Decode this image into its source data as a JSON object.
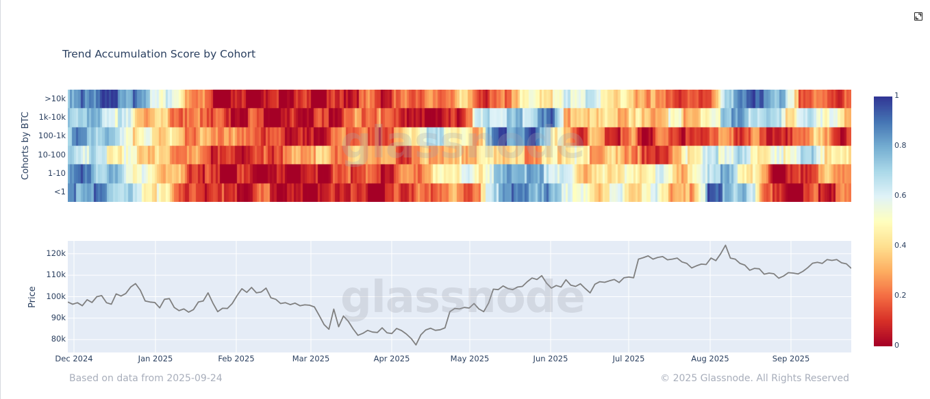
{
  "header": {
    "title": "Trend Accumulation Score by Cohort",
    "expand_icon": "expand-icon"
  },
  "footer": {
    "based_on": "Based on data from 2025-09-24",
    "copyright": "© 2025 Glassnode. All Rights Reserved"
  },
  "watermark": "glassnode",
  "colors": {
    "price_line": "#7f7f7f",
    "plot_bg": "#e5ecf6",
    "grid": "#ffffff",
    "text": "#2a3f5f",
    "footer_text": "#a8aebb",
    "colorscale": [
      "#a50026",
      "#d73027",
      "#f46d43",
      "#fdae61",
      "#fee090",
      "#ffffbf",
      "#e0f3f8",
      "#abd9e9",
      "#74add1",
      "#4575b4",
      "#313695"
    ]
  },
  "chart_data": [
    {
      "type": "heatmap",
      "title": "Trend Accumulation Score by Cohort",
      "ylabel": "Cohorts by BTC",
      "xlabel": "",
      "rows": [
        ">10k",
        "1k-10k",
        "100-1k",
        "10-100",
        "1-10",
        "<1"
      ],
      "x_range": [
        "2024-11-28",
        "2025-09-24"
      ],
      "x_ticks": [
        "Dec 2024",
        "Jan 2025",
        "Feb 2025",
        "Mar 2025",
        "Apr 2025",
        "May 2025",
        "Jun 2025",
        "Jul 2025",
        "Aug 2025",
        "Sep 2025"
      ],
      "colorbar": {
        "min": 0,
        "max": 1,
        "ticks": [
          "0",
          "0.2",
          "0.4",
          "0.6",
          "0.8",
          "1"
        ],
        "colorscale": "RdYlBu"
      },
      "segments_note": "Each row = 60 equal-width time segments from Nov 28 2024 to Sep 24 2025; values are approximate score 0-1",
      "values": {
        ">10k": [
          0.78,
          0.95,
          0.97,
          0.98,
          0.96,
          0.9,
          0.7,
          0.65,
          0.6,
          0.4,
          0.3,
          0.12,
          0.08,
          0.1,
          0.12,
          0.06,
          0.1,
          0.08,
          0.12,
          0.05,
          0.1,
          0.15,
          0.18,
          0.25,
          0.12,
          0.2,
          0.28,
          0.3,
          0.22,
          0.35,
          0.4,
          0.3,
          0.15,
          0.25,
          0.42,
          0.5,
          0.55,
          0.5,
          0.62,
          0.7,
          0.65,
          0.55,
          0.45,
          0.42,
          0.4,
          0.25,
          0.3,
          0.15,
          0.2,
          0.25,
          0.62,
          0.97,
          0.95,
          0.92,
          0.88,
          0.6,
          0.25,
          0.22,
          0.25,
          0.2
        ],
        "1k-10k": [
          0.8,
          0.82,
          0.78,
          0.7,
          0.65,
          0.5,
          0.35,
          0.42,
          0.3,
          0.2,
          0.3,
          0.25,
          0.12,
          0.1,
          0.2,
          0.08,
          0.05,
          0.12,
          0.1,
          0.15,
          0.08,
          0.2,
          0.3,
          0.35,
          0.2,
          0.25,
          0.08,
          0.05,
          0.1,
          0.08,
          0.2,
          0.62,
          0.68,
          0.72,
          0.75,
          0.8,
          0.85,
          0.92,
          0.4,
          0.35,
          0.5,
          0.45,
          0.4,
          0.52,
          0.35,
          0.45,
          0.55,
          0.4,
          0.45,
          0.5,
          0.85,
          0.82,
          0.78,
          0.75,
          0.72,
          0.5,
          0.65,
          0.7,
          0.62,
          0.45
        ],
        "100-1k": [
          0.88,
          0.85,
          0.82,
          0.75,
          0.72,
          0.5,
          0.55,
          0.48,
          0.4,
          0.3,
          0.35,
          0.25,
          0.4,
          0.2,
          0.3,
          0.15,
          0.22,
          0.12,
          0.05,
          0.15,
          0.2,
          0.3,
          0.35,
          0.15,
          0.25,
          0.3,
          0.45,
          0.68,
          0.7,
          0.6,
          0.5,
          0.3,
          0.9,
          0.95,
          0.93,
          0.97,
          0.9,
          0.6,
          0.3,
          0.2,
          0.35,
          0.25,
          0.15,
          0.3,
          0.1,
          0.2,
          0.25,
          0.15,
          0.1,
          0.3,
          0.25,
          0.2,
          0.3,
          0.15,
          0.2,
          0.08,
          0.35,
          0.4,
          0.3,
          0.15
        ],
        "10-100": [
          0.75,
          0.72,
          0.7,
          0.6,
          0.55,
          0.5,
          0.45,
          0.42,
          0.35,
          0.28,
          0.3,
          0.15,
          0.1,
          0.18,
          0.12,
          0.2,
          0.25,
          0.3,
          0.4,
          0.42,
          0.35,
          0.3,
          0.38,
          0.4,
          0.3,
          0.25,
          0.2,
          0.35,
          0.42,
          0.3,
          0.45,
          0.4,
          0.48,
          0.5,
          0.4,
          0.35,
          0.42,
          0.45,
          0.55,
          0.5,
          0.38,
          0.45,
          0.35,
          0.4,
          0.12,
          0.2,
          0.25,
          0.5,
          0.6,
          0.65,
          0.7,
          0.72,
          0.6,
          0.5,
          0.55,
          0.65,
          0.7,
          0.72,
          0.5,
          0.45
        ],
        "1-10": [
          0.95,
          0.92,
          0.85,
          0.78,
          0.7,
          0.6,
          0.52,
          0.45,
          0.4,
          0.25,
          0.2,
          0.1,
          0.08,
          0.15,
          0.1,
          0.05,
          0.1,
          0.08,
          0.04,
          0.1,
          0.15,
          0.2,
          0.25,
          0.2,
          0.12,
          0.25,
          0.3,
          0.35,
          0.45,
          0.55,
          0.62,
          0.5,
          0.68,
          0.75,
          0.92,
          0.85,
          0.8,
          0.72,
          0.6,
          0.45,
          0.42,
          0.5,
          0.55,
          0.45,
          0.58,
          0.65,
          0.5,
          0.4,
          0.55,
          0.78,
          0.82,
          0.65,
          0.5,
          0.35,
          0.05,
          0.08,
          0.2,
          0.3,
          0.35,
          0.4
        ],
        "<1": [
          0.9,
          0.88,
          0.92,
          0.8,
          0.75,
          0.62,
          0.55,
          0.5,
          0.3,
          0.2,
          0.15,
          0.22,
          0.12,
          0.08,
          0.18,
          0.25,
          0.1,
          0.05,
          0.1,
          0.05,
          0.15,
          0.2,
          0.12,
          0.08,
          0.04,
          0.15,
          0.25,
          0.2,
          0.3,
          0.35,
          0.25,
          0.3,
          0.62,
          0.95,
          0.9,
          0.85,
          0.92,
          0.75,
          0.72,
          0.55,
          0.45,
          0.5,
          0.6,
          0.45,
          0.5,
          0.65,
          0.4,
          0.3,
          0.55,
          0.95,
          0.9,
          0.78,
          0.72,
          0.4,
          0.1,
          0.05,
          0.12,
          0.2,
          0.15,
          0.25
        ]
      }
    },
    {
      "type": "line",
      "ylabel": "Price",
      "xlabel": "",
      "ylim": [
        74000,
        126000
      ],
      "y_ticks": [
        "80k",
        "90k",
        "100k",
        "110k",
        "120k"
      ],
      "x_ticks": [
        "Dec 2024",
        "Jan 2025",
        "Feb 2025",
        "Mar 2025",
        "Apr 2025",
        "May 2025",
        "Jun 2025",
        "Jul 2025",
        "Aug 2025",
        "Sep 2025"
      ],
      "grid": true,
      "series": [
        {
          "name": "Price",
          "x_start": "2024-11-28",
          "x_step_days": 3,
          "values": [
            97500,
            96500,
            97200,
            95800,
            98600,
            97300,
            100000,
            100500,
            97200,
            96500,
            101300,
            100300,
            101500,
            104500,
            106100,
            103000,
            98000,
            97500,
            97300,
            94800,
            98800,
            99100,
            95000,
            93500,
            94300,
            92800,
            94000,
            97500,
            98000,
            101800,
            97000,
            93000,
            94600,
            94500,
            96800,
            100500,
            103700,
            102000,
            104300,
            101800,
            102200,
            104000,
            99500,
            98800,
            96800,
            97200,
            96300,
            97000,
            95800,
            96200,
            96000,
            95200,
            91200,
            87000,
            84800,
            94200,
            86000,
            91000,
            88500,
            85000,
            82000,
            82900,
            84300,
            83500,
            83300,
            85500,
            83200,
            82800,
            85200,
            84200,
            82600,
            80500,
            77500,
            82200,
            84500,
            85300,
            84300,
            84600,
            85500,
            93000,
            94500,
            94300,
            95000,
            94700,
            96800,
            94300,
            93000,
            97000,
            103500,
            103300,
            105000,
            103800,
            103300,
            104500,
            104800,
            107000,
            108700,
            108000,
            109800,
            106300,
            104000,
            105200,
            104500,
            107900,
            105400,
            104800,
            106000,
            103800,
            101800,
            105800,
            107000,
            106700,
            107400,
            108000,
            106600,
            108800,
            109200,
            108800,
            117500,
            118200,
            119000,
            117500,
            118300,
            118700,
            117200,
            117500,
            118000,
            116200,
            115500,
            113400,
            114400,
            115200,
            115000,
            118000,
            116800,
            120000,
            124000,
            118000,
            117500,
            115500,
            114700,
            112300,
            113200,
            113000,
            110500,
            111000,
            110700,
            108600,
            109600,
            111200,
            111000,
            110600,
            111800,
            113500,
            115600,
            116000,
            115500,
            117300,
            116900,
            117300,
            115800,
            115300,
            113200
          ]
        }
      ]
    }
  ]
}
